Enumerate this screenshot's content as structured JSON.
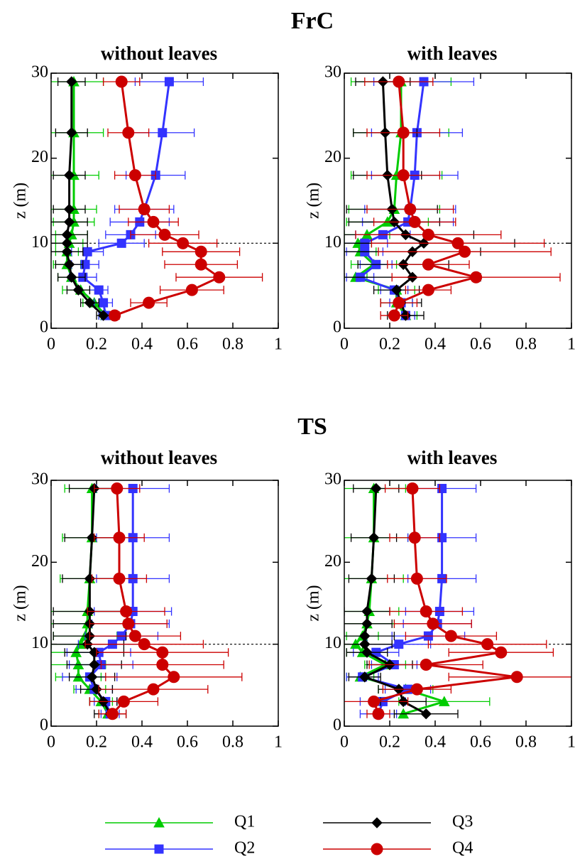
{
  "figure_titles": [
    "FrC",
    "TS"
  ],
  "legend": "bottom",
  "chart_data": [
    {
      "type": "line",
      "title": "without leaves",
      "ylabel": "z (m)",
      "xlim": [
        0,
        1
      ],
      "ylim": [
        0,
        30
      ],
      "xticks": [
        0,
        0.2,
        0.4,
        0.6,
        0.8,
        1
      ],
      "yticks": [
        0,
        10,
        20,
        30
      ],
      "reference_line": 10,
      "z": [
        1.5,
        3,
        4.5,
        6,
        7.5,
        9,
        10,
        11,
        12.5,
        14,
        18,
        23,
        29
      ],
      "series": [
        {
          "name": "Q1",
          "color": "#00cc00",
          "marker": "triangle",
          "values": [
            0.24,
            0.19,
            0.13,
            0.09,
            0.07,
            0.07,
            0.08,
            0.09,
            0.1,
            0.1,
            0.1,
            0.1,
            0.1
          ],
          "errors": [
            0.03,
            0.05,
            0.08,
            0.06,
            0.06,
            0.05,
            0.06,
            0.07,
            0.09,
            0.1,
            0.11,
            0.13,
            0.13
          ]
        },
        {
          "name": "Q2",
          "color": "#3333ff",
          "marker": "square",
          "values": [
            0.24,
            0.23,
            0.21,
            0.14,
            0.15,
            0.16,
            0.31,
            0.35,
            0.39,
            0.41,
            0.46,
            0.49,
            0.52
          ],
          "errors": [
            0.03,
            0.04,
            0.04,
            0.06,
            0.06,
            0.07,
            0.1,
            0.11,
            0.13,
            0.13,
            0.13,
            0.14,
            0.15
          ]
        },
        {
          "name": "Q3",
          "color": "#000000",
          "marker": "diamond",
          "values": [
            0.23,
            0.17,
            0.12,
            0.09,
            0.08,
            0.07,
            0.07,
            0.07,
            0.08,
            0.08,
            0.08,
            0.09,
            0.09
          ],
          "errors": [
            0.03,
            0.04,
            0.05,
            0.06,
            0.06,
            0.07,
            0.09,
            0.09,
            0.08,
            0.07,
            0.07,
            0.07,
            0.06
          ]
        },
        {
          "name": "Q4",
          "color": "#cc0000",
          "marker": "circle",
          "values": [
            0.28,
            0.43,
            0.62,
            0.74,
            0.66,
            0.66,
            0.58,
            0.5,
            0.45,
            0.41,
            0.37,
            0.34,
            0.31
          ],
          "errors": [
            0.02,
            0.08,
            0.14,
            0.19,
            0.16,
            0.17,
            0.15,
            0.15,
            0.11,
            0.11,
            0.09,
            0.09,
            0.08
          ]
        }
      ]
    },
    {
      "type": "line",
      "title": "with leaves",
      "ylabel": "z (m)",
      "xlim": [
        0,
        1
      ],
      "ylim": [
        0,
        30
      ],
      "xticks": [
        0,
        0.2,
        0.4,
        0.6,
        0.8,
        1
      ],
      "yticks": [
        0,
        10,
        20,
        30
      ],
      "reference_line": 10,
      "z": [
        1.5,
        3,
        4.5,
        6,
        7.5,
        9,
        10,
        11,
        12.5,
        14,
        18,
        23,
        29
      ],
      "series": [
        {
          "name": "Q1",
          "color": "#00cc00",
          "marker": "triangle",
          "values": [
            0.27,
            0.23,
            0.23,
            0.05,
            0.13,
            0.07,
            0.06,
            0.1,
            0.19,
            0.22,
            0.23,
            0.25,
            0.25
          ],
          "errors": [
            0.05,
            0.07,
            0.08,
            0.05,
            0.1,
            0.07,
            0.06,
            0.1,
            0.18,
            0.2,
            0.2,
            0.21,
            0.22
          ]
        },
        {
          "name": "Q2",
          "color": "#3333ff",
          "marker": "square",
          "values": [
            0.27,
            0.25,
            0.22,
            0.07,
            0.14,
            0.09,
            0.09,
            0.17,
            0.28,
            0.29,
            0.31,
            0.32,
            0.35
          ],
          "errors": [
            0.04,
            0.05,
            0.06,
            0.06,
            0.07,
            0.08,
            0.1,
            0.12,
            0.2,
            0.2,
            0.19,
            0.2,
            0.22
          ]
        },
        {
          "name": "Q3",
          "color": "#000000",
          "marker": "diamond",
          "values": [
            0.27,
            0.25,
            0.23,
            0.3,
            0.26,
            0.3,
            0.35,
            0.27,
            0.22,
            0.21,
            0.19,
            0.18,
            0.17
          ],
          "errors": [
            0.08,
            0.09,
            0.1,
            0.3,
            0.2,
            0.3,
            0.4,
            0.3,
            0.2,
            0.2,
            0.15,
            0.14,
            0.12
          ]
        },
        {
          "name": "Q4",
          "color": "#cc0000",
          "marker": "circle",
          "values": [
            0.22,
            0.24,
            0.37,
            0.58,
            0.37,
            0.53,
            0.5,
            0.37,
            0.31,
            0.29,
            0.26,
            0.26,
            0.24
          ],
          "errors": [
            0.06,
            0.08,
            0.1,
            0.37,
            0.18,
            0.38,
            0.38,
            0.32,
            0.18,
            0.19,
            0.16,
            0.16,
            0.15
          ]
        }
      ]
    },
    {
      "type": "line",
      "title": "without leaves",
      "ylabel": "z (m)",
      "xlim": [
        0,
        1
      ],
      "ylim": [
        0,
        30
      ],
      "xticks": [
        0,
        0.2,
        0.4,
        0.6,
        0.8,
        1
      ],
      "yticks": [
        0,
        10,
        20,
        30
      ],
      "reference_line": 10,
      "z": [
        1.5,
        3,
        4.5,
        6,
        7.5,
        9,
        10,
        11,
        12.5,
        14,
        18,
        23,
        29
      ],
      "series": [
        {
          "name": "Q1",
          "color": "#00cc00",
          "marker": "triangle",
          "values": [
            0.25,
            0.22,
            0.17,
            0.12,
            0.12,
            0.11,
            0.13,
            0.15,
            0.16,
            0.16,
            0.17,
            0.18,
            0.18
          ],
          "errors": [
            0.04,
            0.05,
            0.07,
            0.1,
            0.12,
            0.11,
            0.13,
            0.14,
            0.16,
            0.16,
            0.13,
            0.13,
            0.12
          ]
        },
        {
          "name": "Q2",
          "color": "#3333ff",
          "marker": "square",
          "values": [
            0.26,
            0.24,
            0.19,
            0.17,
            0.22,
            0.21,
            0.27,
            0.31,
            0.35,
            0.36,
            0.36,
            0.36,
            0.36
          ],
          "errors": [
            0.04,
            0.05,
            0.08,
            0.12,
            0.14,
            0.14,
            0.15,
            0.16,
            0.17,
            0.17,
            0.16,
            0.16,
            0.16
          ]
        },
        {
          "name": "Q3",
          "color": "#000000",
          "marker": "diamond",
          "values": [
            0.26,
            0.23,
            0.2,
            0.18,
            0.19,
            0.19,
            0.16,
            0.17,
            0.17,
            0.17,
            0.17,
            0.18,
            0.19
          ],
          "errors": [
            0.07,
            0.06,
            0.07,
            0.1,
            0.12,
            0.13,
            0.16,
            0.16,
            0.16,
            0.16,
            0.12,
            0.12,
            0.11
          ]
        },
        {
          "name": "Q4",
          "color": "#cc0000",
          "marker": "circle",
          "values": [
            0.27,
            0.32,
            0.45,
            0.54,
            0.49,
            0.49,
            0.41,
            0.37,
            0.34,
            0.33,
            0.3,
            0.3,
            0.29
          ],
          "errors": [
            0.06,
            0.15,
            0.24,
            0.3,
            0.27,
            0.29,
            0.26,
            0.2,
            0.17,
            0.17,
            0.12,
            0.11,
            0.1
          ]
        }
      ]
    },
    {
      "type": "line",
      "title": "with leaves",
      "ylabel": "z (m)",
      "xlim": [
        0,
        1
      ],
      "ylim": [
        0,
        30
      ],
      "xticks": [
        0,
        0.2,
        0.4,
        0.6,
        0.8,
        1
      ],
      "yticks": [
        0,
        10,
        20,
        30
      ],
      "reference_line": 10,
      "z": [
        1.5,
        3,
        4.5,
        6,
        7.5,
        9,
        10,
        11,
        12.5,
        14,
        18,
        23,
        29
      ],
      "series": [
        {
          "name": "Q1",
          "color": "#00cc00",
          "marker": "triangle",
          "values": [
            0.26,
            0.44,
            0.27,
            0.07,
            0.18,
            0.08,
            0.05,
            0.08,
            0.1,
            0.11,
            0.12,
            0.13,
            0.13
          ],
          "errors": [
            0.1,
            0.2,
            0.12,
            0.06,
            0.09,
            0.07,
            0.05,
            0.07,
            0.12,
            0.13,
            0.14,
            0.15,
            0.14
          ]
        },
        {
          "name": "Q2",
          "color": "#3333ff",
          "marker": "square",
          "values": [
            0.15,
            0.17,
            0.28,
            0.08,
            0.22,
            0.14,
            0.24,
            0.37,
            0.41,
            0.42,
            0.43,
            0.43,
            0.43
          ],
          "errors": [
            0.08,
            0.1,
            0.1,
            0.07,
            0.1,
            0.1,
            0.14,
            0.16,
            0.15,
            0.15,
            0.15,
            0.15,
            0.15
          ]
        },
        {
          "name": "Q3",
          "color": "#000000",
          "marker": "diamond",
          "values": [
            0.36,
            0.26,
            0.24,
            0.09,
            0.2,
            0.1,
            0.09,
            0.09,
            0.1,
            0.1,
            0.12,
            0.13,
            0.14
          ],
          "errors": [
            0.14,
            0.1,
            0.09,
            0.07,
            0.1,
            0.09,
            0.12,
            0.13,
            0.11,
            0.1,
            0.1,
            0.1,
            0.1
          ]
        },
        {
          "name": "Q4",
          "color": "#cc0000",
          "marker": "circle",
          "values": [
            0.15,
            0.13,
            0.32,
            0.76,
            0.36,
            0.69,
            0.63,
            0.47,
            0.39,
            0.36,
            0.32,
            0.31,
            0.3
          ],
          "errors": [
            0.05,
            0.15,
            0.15,
            0.3,
            0.25,
            0.23,
            0.26,
            0.2,
            0.17,
            0.16,
            0.13,
            0.11,
            0.12
          ]
        }
      ]
    }
  ]
}
